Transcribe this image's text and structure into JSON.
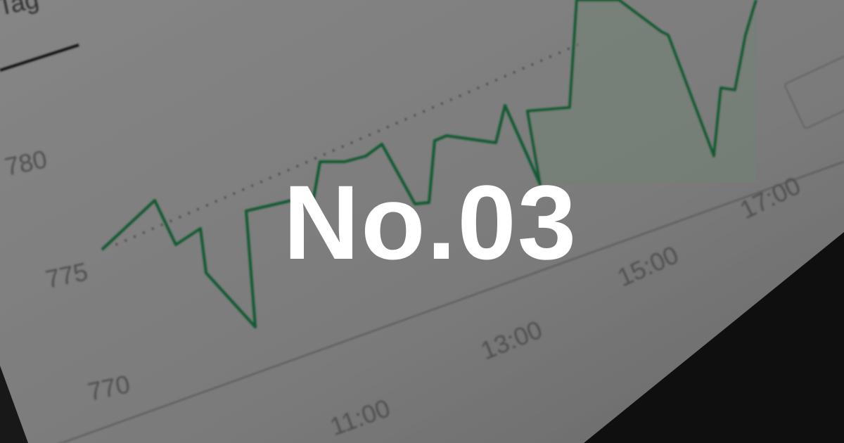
{
  "header": {
    "tag": "Tag"
  },
  "background_chart": {
    "y_labels": [
      "780",
      "775",
      "770"
    ],
    "x_labels": [
      "11:00",
      "13:00",
      "15:00",
      "17:00"
    ]
  },
  "title": "No.03"
}
